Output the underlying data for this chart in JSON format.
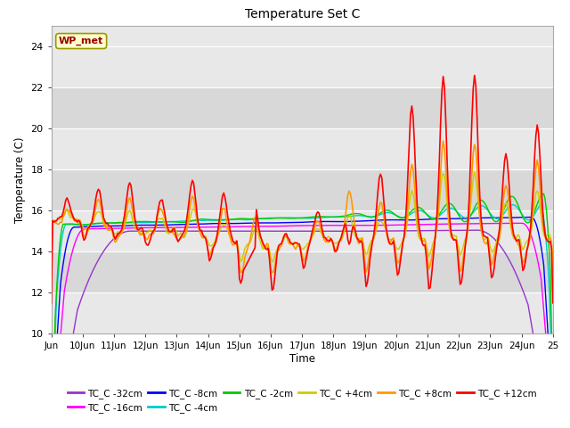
{
  "title": "Temperature Set C",
  "xlabel": "Time",
  "ylabel": "Temperature (C)",
  "ylim": [
    10,
    25
  ],
  "yticks": [
    10,
    12,
    14,
    16,
    18,
    20,
    22,
    24
  ],
  "xtick_labels": [
    "Jun",
    "10Jun",
    "11Jun",
    "12Jun",
    "13Jun",
    "14Jun",
    "15Jun",
    "16Jun",
    "17Jun",
    "18Jun",
    "19Jun",
    "20Jun",
    "21Jun",
    "22Jun",
    "23Jun",
    "24Jun",
    "25"
  ],
  "wp_met_label": "WP_met",
  "wp_met_box_color": "#ffffcc",
  "wp_met_text_color": "#990000",
  "wp_met_border_color": "#999900",
  "series_order": [
    "TC_C -32cm",
    "TC_C -16cm",
    "TC_C -8cm",
    "TC_C -4cm",
    "TC_C -2cm",
    "TC_C +4cm",
    "TC_C +8cm",
    "TC_C +12cm"
  ],
  "series": {
    "TC_C -32cm": {
      "color": "#9933cc",
      "lw": 1.0
    },
    "TC_C -16cm": {
      "color": "#ff00ff",
      "lw": 1.0
    },
    "TC_C -8cm": {
      "color": "#0000ff",
      "lw": 1.0
    },
    "TC_C -4cm": {
      "color": "#00cccc",
      "lw": 1.0
    },
    "TC_C -2cm": {
      "color": "#00cc00",
      "lw": 1.0
    },
    "TC_C +4cm": {
      "color": "#cccc00",
      "lw": 1.0
    },
    "TC_C +8cm": {
      "color": "#ff9900",
      "lw": 1.2
    },
    "TC_C +12cm": {
      "color": "#ff0000",
      "lw": 1.2
    }
  },
  "fig_bg": "#ffffff",
  "plot_bg_light": "#e8e8e8",
  "plot_bg_dark": "#d8d8d8",
  "grid_color": "#ffffff",
  "figsize": [
    6.4,
    4.8
  ],
  "dpi": 100
}
